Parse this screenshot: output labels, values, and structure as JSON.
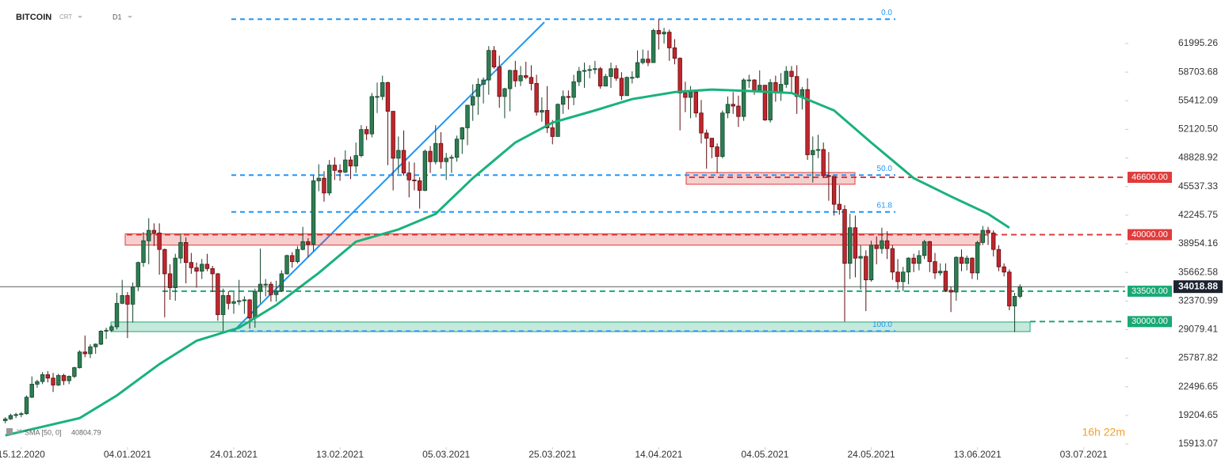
{
  "header": {
    "symbol": "BITCOIN",
    "source": "CRT",
    "interval": "D1"
  },
  "chart_data": {
    "type": "candlestick",
    "x": [
      0,
      1,
      2,
      3,
      4,
      5,
      6,
      7,
      8,
      9,
      10,
      11,
      12,
      13,
      14,
      15,
      16,
      17,
      18,
      19,
      20,
      21,
      22,
      23,
      24,
      25,
      26,
      27,
      28,
      29,
      30,
      31,
      32,
      33,
      34,
      35,
      36,
      37,
      38,
      39,
      40,
      41,
      42,
      43,
      44,
      45,
      46,
      47,
      48,
      49,
      50,
      51,
      52,
      53,
      54,
      55,
      56,
      57,
      58,
      59,
      60,
      61,
      62,
      63,
      64,
      65,
      66,
      67,
      68,
      69,
      70,
      71,
      72,
      73,
      74,
      75,
      76,
      77,
      78,
      79,
      80,
      81,
      82,
      83,
      84,
      85,
      86,
      87,
      88,
      89,
      90,
      91,
      92,
      93,
      94,
      95,
      96,
      97,
      98,
      99,
      100,
      101,
      102,
      103,
      104,
      105,
      106,
      107,
      108,
      109,
      110,
      111,
      112,
      113,
      114,
      115,
      116,
      117,
      118,
      119,
      120,
      121,
      122,
      123,
      124,
      125,
      126,
      127,
      128,
      129,
      130,
      131,
      132,
      133,
      134,
      135,
      136,
      137,
      138,
      139,
      140,
      141,
      142,
      143,
      144,
      145,
      146,
      147,
      148,
      149,
      150,
      151,
      152,
      153,
      154,
      155,
      156,
      157,
      158,
      159,
      160,
      161,
      162,
      163,
      164,
      165,
      166,
      167,
      168,
      169,
      170,
      171,
      172,
      173,
      174,
      175,
      176,
      177,
      178,
      179,
      180,
      181,
      182,
      183,
      184,
      185,
      186,
      187,
      188,
      189,
      190,
      191
    ],
    "open": [
      18600,
      18800,
      19200,
      19300,
      19400,
      21300,
      22800,
      23100,
      23900,
      23500,
      22700,
      23800,
      23200,
      23700,
      24700,
      26500,
      26300,
      27100,
      27400,
      28900,
      29000,
      29400,
      32100,
      33000,
      32000,
      34000,
      36800,
      39300,
      40500,
      40200,
      38300,
      35500,
      33900,
      37300,
      39100,
      36800,
      36200,
      35800,
      36600,
      36100,
      35500,
      30800,
      33000,
      32100,
      32300,
      32400,
      32500,
      30400,
      33500,
      34300,
      34300,
      33100,
      33500,
      35500,
      37600,
      36900,
      38300,
      39200,
      38900,
      46200,
      46500,
      44800,
      48000,
      47400,
      47200,
      48600,
      47900,
      49100,
      52100,
      51600,
      55900,
      55900,
      57500,
      54200,
      48800,
      49700,
      47100,
      46300,
      46200,
      45100,
      49600,
      48400,
      50500,
      48400,
      48800,
      48900,
      51000,
      52300,
      54900,
      55900,
      57300,
      57800,
      61200,
      59300,
      55900,
      56800,
      58900,
      57700,
      58300,
      58100,
      57400,
      54100,
      54300,
      52300,
      51300,
      55000,
      55900,
      55800,
      57600,
      58800,
      58900,
      59000,
      59100,
      57100,
      58200,
      59100,
      58000,
      56000,
      58100,
      58100,
      59800,
      60200,
      59800,
      63500,
      63100,
      63300,
      61500,
      60300,
      56300,
      55800,
      56400,
      54000,
      51700,
      51100,
      50100,
      49000,
      54000,
      55000,
      54800,
      53600,
      57800,
      57800,
      56600,
      57200,
      53200,
      57500,
      56400,
      57300,
      58800,
      58200,
      55900,
      56700,
      49200,
      49700,
      49800,
      46800,
      46700,
      43500,
      42900,
      36700,
      40800,
      37300,
      37500,
      34800,
      38800,
      38400,
      39300,
      38400,
      35700,
      34600,
      35700,
      37300,
      36700,
      37600,
      39200,
      36900,
      35600,
      35800,
      33600,
      33400,
      37400,
      36700,
      37300,
      35600,
      39100,
      40500,
      40200,
      38300,
      36300,
      35700,
      31800,
      32900
    ],
    "high": [
      19000,
      19400,
      19500,
      19600,
      21500,
      23700,
      23300,
      24200,
      24300,
      24100,
      24000,
      24000,
      23800,
      24800,
      26700,
      28400,
      27400,
      27500,
      29000,
      29300,
      29600,
      33300,
      34800,
      33400,
      34500,
      36900,
      40300,
      41900,
      41300,
      41300,
      38400,
      36600,
      37800,
      40100,
      39700,
      37900,
      36800,
      37200,
      37800,
      36400,
      35600,
      33800,
      33500,
      33400,
      34800,
      32900,
      32600,
      33800,
      38400,
      34900,
      34600,
      34700,
      35900,
      37700,
      38000,
      38700,
      40900,
      39600,
      46800,
      48100,
      47300,
      48600,
      48900,
      48100,
      49700,
      49000,
      50600,
      52600,
      52500,
      56300,
      57500,
      58300,
      57600,
      54200,
      51300,
      52000,
      48400,
      48300,
      46600,
      49800,
      50200,
      52600,
      51800,
      49400,
      49200,
      51400,
      52400,
      54900,
      57300,
      58000,
      58100,
      61700,
      61700,
      60600,
      56900,
      59000,
      60000,
      59400,
      59900,
      59500,
      58400,
      55800,
      57100,
      53200,
      55100,
      56600,
      56600,
      58400,
      59300,
      59800,
      59500,
      60000,
      59300,
      58500,
      59800,
      59500,
      58700,
      58200,
      58800,
      61200,
      61300,
      61200,
      63700,
      64800,
      63800,
      63600,
      62500,
      60400,
      57600,
      57100,
      56600,
      55500,
      52100,
      51100,
      50500,
      54300,
      55900,
      56400,
      56000,
      58000,
      58400,
      57900,
      58900,
      57200,
      57900,
      58300,
      58600,
      59400,
      59400,
      59500,
      57000,
      58000,
      51300,
      51500,
      50600,
      49500,
      46700,
      45700,
      43400,
      42400,
      42200,
      38800,
      38200,
      39300,
      39800,
      40800,
      40400,
      38800,
      37200,
      36300,
      37400,
      37800,
      38200,
      39400,
      39300,
      37900,
      36700,
      36700,
      34000,
      37500,
      38300,
      37600,
      37400,
      39300,
      41000,
      40900,
      40500,
      38800,
      36700,
      36000,
      33300,
      34300
    ],
    "low": [
      18300,
      18700,
      18900,
      19000,
      19300,
      21200,
      22400,
      22800,
      23000,
      21900,
      22600,
      22700,
      22800,
      23500,
      24600,
      25900,
      25800,
      26300,
      27300,
      28000,
      28800,
      29100,
      32000,
      28100,
      29900,
      33500,
      36300,
      36600,
      38700,
      35400,
      30500,
      32500,
      32400,
      36700,
      34400,
      35500,
      33900,
      34900,
      35800,
      33400,
      30100,
      28900,
      31400,
      30900,
      31900,
      30900,
      29200,
      29300,
      32100,
      32900,
      32300,
      32300,
      33400,
      35400,
      36200,
      36700,
      38200,
      37400,
      38100,
      45000,
      43800,
      44500,
      46300,
      46200,
      47100,
      46400,
      47100,
      48900,
      50900,
      51200,
      54000,
      55500,
      48000,
      45100,
      47000,
      46800,
      44300,
      45100,
      43000,
      45000,
      47100,
      48100,
      47600,
      46300,
      47100,
      48400,
      49300,
      50300,
      53100,
      53800,
      55100,
      56100,
      59100,
      54600,
      53400,
      54200,
      57000,
      57100,
      57900,
      56600,
      53700,
      53000,
      51700,
      50400,
      51300,
      53900,
      54400,
      54900,
      57100,
      56900,
      58000,
      58500,
      56800,
      57100,
      56900,
      57700,
      55500,
      56000,
      57400,
      58000,
      59600,
      59400,
      59800,
      61300,
      62000,
      60000,
      59600,
      52000,
      54100,
      53400,
      53500,
      50500,
      47600,
      48800,
      47100,
      48800,
      53400,
      53900,
      52400,
      53100,
      56900,
      56100,
      56600,
      53100,
      52900,
      55300,
      55400,
      56900,
      56300,
      53900,
      54400,
      48600,
      46000,
      48800,
      46600,
      43900,
      42200,
      42300,
      30000,
      34900,
      35100,
      33700,
      31200,
      34600,
      36600,
      37800,
      37200,
      34800,
      33700,
      33500,
      34300,
      35700,
      35900,
      37200,
      35700,
      34900,
      35300,
      33400,
      31100,
      32400,
      35800,
      35900,
      34900,
      34800,
      38800,
      38800,
      37500,
      35800,
      35200,
      31300,
      28800,
      32700
    ],
    "close": [
      18800,
      19200,
      19300,
      19400,
      21300,
      22800,
      23100,
      23900,
      23500,
      22700,
      23800,
      23200,
      23700,
      24700,
      26500,
      26300,
      27100,
      27400,
      28900,
      29000,
      29400,
      32100,
      33000,
      32000,
      34000,
      36800,
      39300,
      40500,
      40200,
      38300,
      35500,
      33900,
      37300,
      39100,
      36800,
      36200,
      35800,
      36600,
      36100,
      35500,
      30800,
      33000,
      32100,
      32300,
      32400,
      32500,
      30400,
      33500,
      34300,
      34300,
      33100,
      33500,
      35500,
      37600,
      36900,
      38300,
      39200,
      38900,
      46200,
      46500,
      44800,
      48000,
      47400,
      47200,
      48600,
      47900,
      49100,
      52100,
      51600,
      55900,
      55900,
      57500,
      54200,
      48800,
      49700,
      47100,
      46300,
      46200,
      45100,
      49600,
      48400,
      50500,
      48400,
      48800,
      48900,
      51000,
      52300,
      54900,
      55900,
      57300,
      57800,
      61200,
      59300,
      55900,
      56800,
      58900,
      57700,
      58300,
      58100,
      57400,
      54100,
      54300,
      52300,
      51300,
      55000,
      55900,
      55800,
      57600,
      58800,
      58900,
      59000,
      59100,
      57100,
      58200,
      59100,
      58000,
      56000,
      58100,
      58100,
      59800,
      60200,
      59800,
      63500,
      63100,
      63300,
      61500,
      60300,
      56300,
      55800,
      56400,
      54000,
      51700,
      51100,
      50100,
      49000,
      54000,
      55000,
      54800,
      53600,
      57800,
      57800,
      56600,
      57200,
      53200,
      57500,
      56400,
      57300,
      58800,
      58200,
      55900,
      56700,
      49200,
      49700,
      49800,
      46800,
      46700,
      43500,
      42900,
      36700,
      40800,
      37300,
      37500,
      34800,
      38800,
      38400,
      39300,
      38400,
      35700,
      34600,
      35700,
      37300,
      36700,
      37600,
      39200,
      36900,
      35600,
      35800,
      33600,
      33400,
      37400,
      36700,
      37300,
      35600,
      39100,
      40500,
      40200,
      38300,
      36300,
      35700,
      31800,
      32900,
      34018.88
    ],
    "up_color": "#2e7d52",
    "down_color": "#c0262d",
    "xlim": [
      -1,
      210.8
    ],
    "xticks": [
      {
        "value": 3,
        "label": "15.12.2020"
      },
      {
        "value": 23,
        "label": "04.01.2021"
      },
      {
        "value": 43,
        "label": "24.01.2021"
      },
      {
        "value": 63,
        "label": "13.02.2021"
      },
      {
        "value": 83,
        "label": "05.03.2021"
      },
      {
        "value": 103,
        "label": "25.03.2021"
      },
      {
        "value": 123,
        "label": "14.04.2021"
      },
      {
        "value": 143,
        "label": "04.05.2021"
      },
      {
        "value": 163,
        "label": "24.05.2021"
      },
      {
        "value": 183,
        "label": "13.06.2021"
      },
      {
        "value": 203,
        "label": "03.07.2021"
      }
    ],
    "ylim": [
      15547,
      67004
    ],
    "yticks": [
      15913.07,
      19204.65,
      22496.65,
      25787.82,
      29079.41,
      32370.99,
      35662.58,
      38954.16,
      42245.75,
      45537.33,
      48828.92,
      {
        "value": 52120.5,
        "label": "52120.50"
      },
      55412.09,
      58703.68,
      61995.26
    ],
    "sma": {
      "name": "SMA [50, 0]",
      "color": "#19b27b",
      "x": [
        0,
        14,
        21,
        29,
        36,
        44,
        51,
        59,
        66,
        74,
        81,
        88,
        96,
        103,
        111,
        118,
        126,
        133,
        141,
        148,
        156,
        163,
        171,
        178,
        185,
        189
      ],
      "values": [
        16900,
        18900,
        21500,
        25100,
        27800,
        29300,
        31900,
        35600,
        39200,
        40600,
        42400,
        46500,
        50600,
        52900,
        54300,
        55600,
        56400,
        56700,
        56500,
        56300,
        54300,
        50600,
        46500,
        44400,
        42400,
        40804.79
      ]
    },
    "fibonacci": {
      "color": "#2196f3",
      "levels": [
        {
          "value": 64800,
          "label": "0.0"
        },
        {
          "value": 46850,
          "label": "50.0"
        },
        {
          "value": 42620,
          "label": "61.8"
        },
        {
          "value": 28900,
          "label": "100.0"
        }
      ]
    },
    "levels": [
      {
        "value": 46600,
        "label": "46600.00",
        "color": "#e03b3b"
      },
      {
        "value": 40000,
        "label": "40000.00",
        "color": "#e03b3b"
      },
      {
        "value": 33500,
        "label": "33500.00",
        "color": "#19a974"
      },
      {
        "value": 30000,
        "label": "30000.00",
        "color": "#19a974"
      }
    ],
    "zones": [
      {
        "range": [
          38800,
          40100
        ],
        "color": "#e03b3b"
      },
      {
        "range": [
          45800,
          47150
        ],
        "color": "#e03b3b"
      },
      {
        "range": [
          28850,
          29950
        ],
        "color": "#19a974"
      }
    ]
  },
  "countdown": "16h 22m"
}
